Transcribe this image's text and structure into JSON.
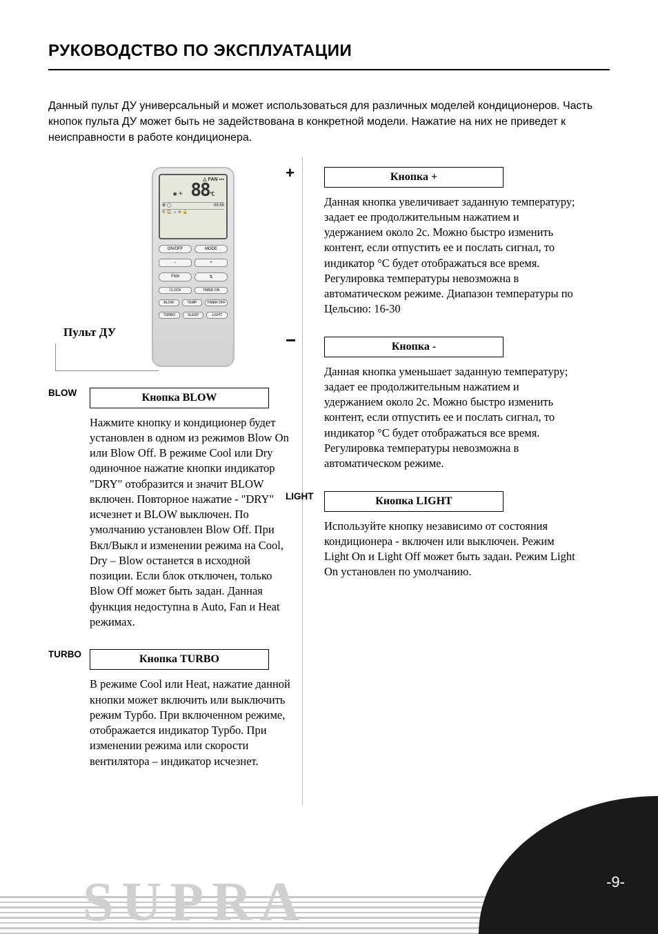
{
  "page_title": "РУКОВОДСТВО ПО ЭКСПЛУАТАЦИИ",
  "intro": "Данный пульт ДУ универсальный и может использоваться для различных моделей кондиционеров. Часть кнопок пульта ДУ может быть не задействована в конкретной модели. Нажатие на них не приведет к неисправности в работе кондиционера.",
  "remote": {
    "label": "Пульт ДУ",
    "lcd_top": "FAN",
    "lcd_temp": "88",
    "lcd_unit": "°C",
    "lcd_time": "88:88",
    "buttons": {
      "row1": [
        "ON/OFF",
        "MODE"
      ],
      "row2": [
        "−",
        "+"
      ],
      "row3": [
        "FAN",
        "⇅"
      ],
      "row4": [
        "CLOCK",
        "TIMER ON"
      ],
      "row5": [
        "BLOW",
        "TEMP",
        "TIMER OFF"
      ],
      "row6": [
        "TURBO",
        "SLEEP",
        "LIGHT"
      ]
    }
  },
  "left": {
    "blow": {
      "tag": "BLOW",
      "heading": "Кнопка BLOW",
      "body": "Нажмите кнопку и кондиционер будет установлен в одном из режимов Blow On или Blow Off. В режиме Cool или Dry одиночное нажатие кнопки индикатор \"DRY\" отобразится и значит BLOW включен. Повторное нажатие - \"DRY\" исчезнет и BLOW выключен. По умолчанию установлен Blow Off. При Вкл/Выкл и изменении режима на Cool, Dry – Blow останется в исходной позиции. Если блок отключен, только Blow Off может быть задан. Данная функция недоступна в Auto, Fan и Heat режимах."
    },
    "turbo": {
      "tag": "TURBO",
      "heading": "Кнопка TURBO",
      "body": "В режиме Cool или Heat, нажатие данной кнопки может включить или выключить режим Турбо. При включенном режиме, отображается индикатор Турбо.  При изменении режима или скорости вентилятора – индикатор исчезнет."
    }
  },
  "right": {
    "plus": {
      "tag": "+",
      "heading": "Кнопка +",
      "body": "Данная кнопка увеличивает заданную температуру; задает ее продолжительным нажатием и удержанием около 2с. Можно быстро изменить контент, если отпустить ее и послать сигнал, то индикатор °C будет отображаться все время. Регулировка температуры невозможна в автоматическом режиме. Диапазон температуры по Цельсию: 16-30"
    },
    "minus": {
      "tag": "−",
      "heading": "Кнопка -",
      "body": "Данная кнопка уменьшает заданную температуру; задает ее продолжительным нажатием и удержанием около 2с. Можно быстро изменить контент, если отпустить ее и послать сигнал, то индикатор °C будет отображаться все время. Регулировка температуры невозможна в автоматическом режиме."
    },
    "light": {
      "tag": "LIGHT",
      "heading": "Кнопка LIGHT",
      "body": "Используйте кнопку независимо от состояния кондиционера -  включен или выключен. Режим Light On и Light Off может быть задан. Режим Light On установлен по умолчанию."
    }
  },
  "brand": "SUPRA",
  "page_number": "-9-",
  "colors": {
    "text": "#000000",
    "muted_line": "#9a9a9a",
    "stripe": "#c8c8c8",
    "brand_ghost": "#d0d0d0",
    "corner": "#1a1a1a",
    "pagenum": "#ffffff",
    "remote_body_top": "#e8e8e8",
    "remote_body_bottom": "#d2d2d2",
    "lcd_bg": "#e6e8dc"
  }
}
